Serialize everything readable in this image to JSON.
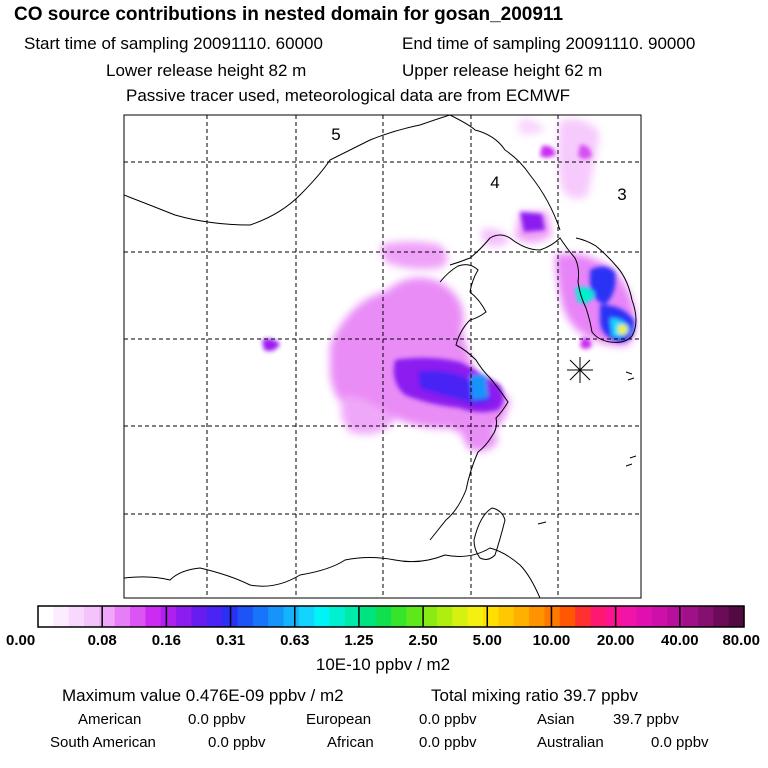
{
  "header": {
    "title": "CO  source contributions in nested domain for gosan_200911",
    "start_time": "Start time of sampling 20091110. 60000",
    "end_time": "End time of sampling 20091110. 90000",
    "lower_height": "Lower release height   82 m",
    "upper_height": "Upper release height   62 m",
    "note": "Passive tracer used, meteorological data are from ECMWF"
  },
  "map": {
    "region_labels": [
      "5",
      "4",
      "3"
    ],
    "receptor": "gosan"
  },
  "colorbar": {
    "labels": [
      "0.00",
      "0.08",
      "0.16",
      "0.31",
      "0.63",
      "1.25",
      "2.50",
      "5.00",
      "10.00",
      "20.00",
      "40.00",
      "80.00"
    ],
    "unit": "10E-10 ppbv / m2",
    "colors": [
      "#ffffff",
      "#fcecfe",
      "#f9d8fd",
      "#f5c3fc",
      "#f0a6fb",
      "#e67ef8",
      "#db55f5",
      "#cc2cf2",
      "#b01ef0",
      "#8c1cf0",
      "#681cf0",
      "#4a24f4",
      "#2a30f6",
      "#1e54f6",
      "#1874f8",
      "#1694fa",
      "#14b4fc",
      "#12d4fe",
      "#00f4f6",
      "#00f0d0",
      "#00eaaa",
      "#00e480",
      "#10e050",
      "#36e42c",
      "#5ee81c",
      "#88ec14",
      "#b0ee10",
      "#d6f010",
      "#f6f010",
      "#ffe000",
      "#ffc800",
      "#ffb000",
      "#ff9400",
      "#ff7800",
      "#ff5800",
      "#ff3030",
      "#ff1870",
      "#fa1494",
      "#f014a8",
      "#e010b0",
      "#cc10a8",
      "#b8109c",
      "#a01088",
      "#861070",
      "#6c0c58",
      "#520a42"
    ]
  },
  "footer": {
    "max_value": "Maximum value  0.476E-09 ppbv / m2",
    "total_mixing": "Total mixing ratio       39.7 ppbv",
    "contributions": [
      {
        "name": "American",
        "value": "0.0 ppbv"
      },
      {
        "name": "European",
        "value": "0.0 ppbv"
      },
      {
        "name": "Asian",
        "value": "39.7 ppbv"
      },
      {
        "name": "South American",
        "value": "0.0 ppbv"
      },
      {
        "name": "African",
        "value": "0.0 ppbv"
      },
      {
        "name": "Australian",
        "value": "0.0 ppbv"
      }
    ]
  }
}
